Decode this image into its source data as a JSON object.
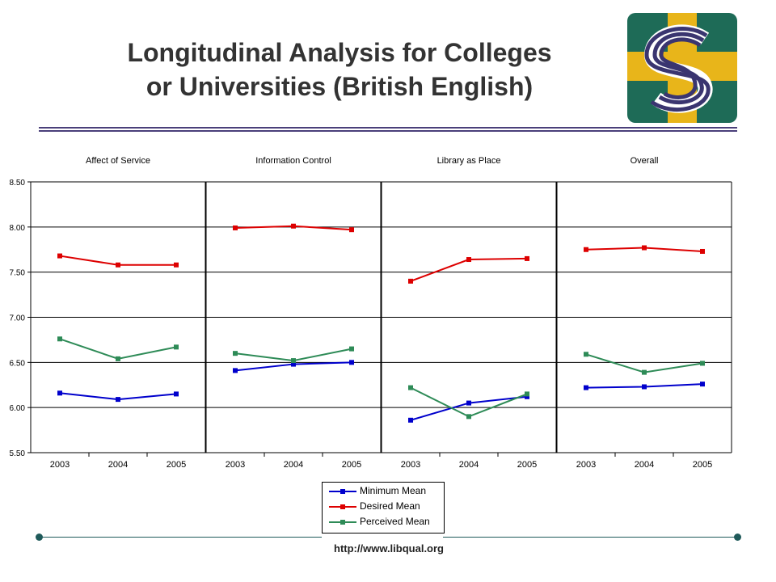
{
  "header": {
    "title_line1": "Longitudinal Analysis for Colleges",
    "title_line2": "or Universities (British English)"
  },
  "footer": {
    "url": "http://www.libqual.org"
  },
  "chart_data": {
    "type": "line",
    "ylim": [
      5.5,
      8.5
    ],
    "yticks": [
      "8.50",
      "8.00",
      "7.50",
      "7.00",
      "6.50",
      "6.00",
      "5.50"
    ],
    "grid": true,
    "legend_placement": "bottom-center",
    "categories": [
      "2003",
      "2004",
      "2005"
    ],
    "series_colors": {
      "Minimum Mean": "#0000cc",
      "Desired Mean": "#dd0000",
      "Perceived Mean": "#2e8b57"
    },
    "panels": [
      {
        "title": "Affect of Service",
        "series": [
          {
            "name": "Minimum Mean",
            "values": [
              6.16,
              6.09,
              6.15
            ]
          },
          {
            "name": "Desired Mean",
            "values": [
              7.68,
              7.58,
              7.58
            ]
          },
          {
            "name": "Perceived Mean",
            "values": [
              6.76,
              6.54,
              6.67
            ]
          }
        ]
      },
      {
        "title": "Information Control",
        "series": [
          {
            "name": "Minimum Mean",
            "values": [
              6.41,
              6.48,
              6.5
            ]
          },
          {
            "name": "Desired Mean",
            "values": [
              7.99,
              8.01,
              7.97
            ]
          },
          {
            "name": "Perceived Mean",
            "values": [
              6.6,
              6.52,
              6.65
            ]
          }
        ]
      },
      {
        "title": "Library as Place",
        "series": [
          {
            "name": "Minimum Mean",
            "values": [
              5.86,
              6.05,
              6.12
            ]
          },
          {
            "name": "Desired Mean",
            "values": [
              7.4,
              7.64,
              7.65
            ]
          },
          {
            "name": "Perceived Mean",
            "values": [
              6.22,
              5.9,
              6.15
            ]
          }
        ]
      },
      {
        "title": "Overall",
        "series": [
          {
            "name": "Minimum Mean",
            "values": [
              6.22,
              6.23,
              6.26
            ]
          },
          {
            "name": "Desired Mean",
            "values": [
              7.75,
              7.77,
              7.73
            ]
          },
          {
            "name": "Perceived Mean",
            "values": [
              6.59,
              6.39,
              6.49
            ]
          }
        ]
      }
    ],
    "legend": [
      "Minimum Mean",
      "Desired Mean",
      "Perceived Mean"
    ]
  }
}
